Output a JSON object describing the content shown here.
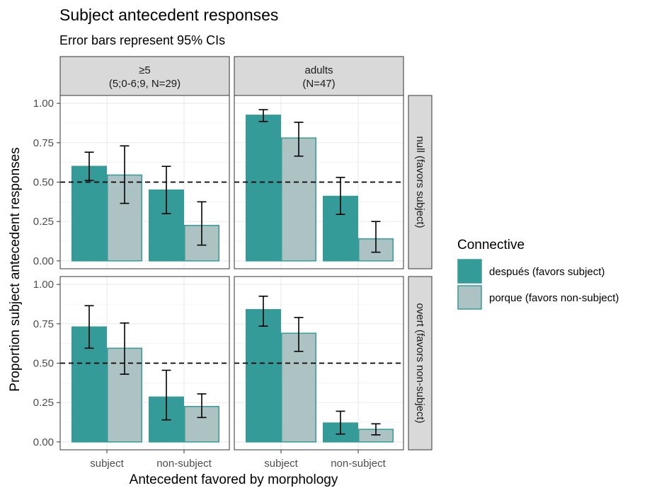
{
  "chart_data": {
    "type": "bar",
    "title": "Subject antecedent responses",
    "subtitle": "Error bars represent 95% CIs",
    "xlabel": "Antecedent favored by morphology",
    "ylabel": "Proportion subject antecedent responses",
    "ylim": [
      0,
      1
    ],
    "y_ticks": [
      "0.00",
      "0.25",
      "0.50",
      "0.75",
      "1.00"
    ],
    "categories": [
      "subject",
      "non-subject"
    ],
    "reference_line": 0.5,
    "grid": true,
    "legend": {
      "title": "Connective",
      "placement": "right",
      "items": [
        {
          "label": "después (favors subject)",
          "color": "#359b98"
        },
        {
          "label": "porque (favors non-subject)",
          "color": "#adc2c2"
        }
      ]
    },
    "column_facets": [
      {
        "line1": "≥5",
        "line2": "(5;0-6;9, N=29)"
      },
      {
        "line1": "adults",
        "line2": "(N=47)"
      }
    ],
    "row_facets": [
      "null (favors subject)",
      "overt (favors non-subject)"
    ],
    "panels": [
      {
        "column": 0,
        "row": 0,
        "series": [
          {
            "connective": "después (favors subject)",
            "values": [
              0.6,
              0.45
            ],
            "ci_low": [
              0.51,
              0.3
            ],
            "ci_high": [
              0.69,
              0.6
            ]
          },
          {
            "connective": "porque (favors non-subject)",
            "values": [
              0.545,
              0.225
            ],
            "ci_low": [
              0.365,
              0.1
            ],
            "ci_high": [
              0.73,
              0.375
            ]
          }
        ]
      },
      {
        "column": 1,
        "row": 0,
        "series": [
          {
            "connective": "después (favors subject)",
            "values": [
              0.925,
              0.41
            ],
            "ci_low": [
              0.885,
              0.295
            ],
            "ci_high": [
              0.96,
              0.53
            ]
          },
          {
            "connective": "porque (favors non-subject)",
            "values": [
              0.78,
              0.14
            ],
            "ci_low": [
              0.665,
              0.055
            ],
            "ci_high": [
              0.88,
              0.25
            ]
          }
        ]
      },
      {
        "column": 0,
        "row": 1,
        "series": [
          {
            "connective": "después (favors subject)",
            "values": [
              0.73,
              0.285
            ],
            "ci_low": [
              0.595,
              0.14
            ],
            "ci_high": [
              0.865,
              0.455
            ]
          },
          {
            "connective": "porque (favors non-subject)",
            "values": [
              0.595,
              0.225
            ],
            "ci_low": [
              0.43,
              0.155
            ],
            "ci_high": [
              0.755,
              0.305
            ]
          }
        ]
      },
      {
        "column": 1,
        "row": 1,
        "series": [
          {
            "connective": "después (favors subject)",
            "values": [
              0.84,
              0.12
            ],
            "ci_low": [
              0.735,
              0.05
            ],
            "ci_high": [
              0.925,
              0.195
            ]
          },
          {
            "connective": "porque (favors non-subject)",
            "values": [
              0.69,
              0.08
            ],
            "ci_low": [
              0.575,
              0.045
            ],
            "ci_high": [
              0.79,
              0.115
            ]
          }
        ]
      }
    ]
  }
}
